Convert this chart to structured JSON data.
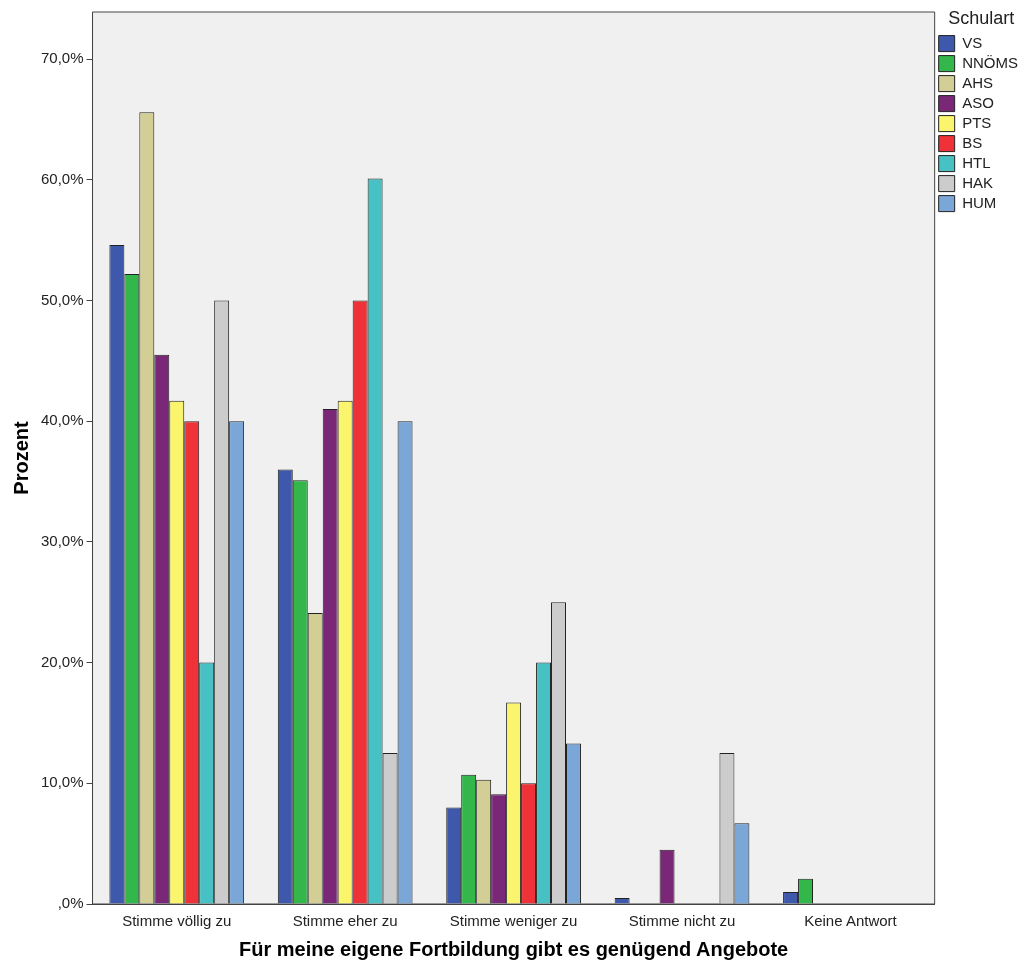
{
  "chart_data": {
    "type": "bar",
    "xlabel": "Für meine eigene Fortbildung gibt es genügend Angebote",
    "ylabel": "Prozent",
    "legend_title": "Schulart",
    "legend": "right",
    "grid": false,
    "categories": [
      "Stimme völlig zu",
      "Stimme eher zu",
      "Stimme weniger zu",
      "Stimme nicht zu",
      "Keine Antwort"
    ],
    "ylim": [
      0,
      73.9
    ],
    "yticks": [
      {
        "value": 0,
        "label": ",0%"
      },
      {
        "value": 10,
        "label": "10,0%"
      },
      {
        "value": 20,
        "label": "20,0%"
      },
      {
        "value": 30,
        "label": "30,0%"
      },
      {
        "value": 40,
        "label": "40,0%"
      },
      {
        "value": 50,
        "label": "50,0%"
      },
      {
        "value": 60,
        "label": "60,0%"
      },
      {
        "value": 70,
        "label": "70,0%"
      }
    ],
    "series": [
      {
        "name": "VS",
        "color": "#3e58ac",
        "values": [
          54.6,
          36.0,
          8.0,
          0.5,
          1.0
        ]
      },
      {
        "name": "NNÖMS",
        "color": "#33b74b",
        "values": [
          52.2,
          35.1,
          10.7,
          0,
          2.1
        ]
      },
      {
        "name": "AHS",
        "color": "#d2ce96",
        "values": [
          65.6,
          24.1,
          10.3,
          0,
          0
        ]
      },
      {
        "name": "ASO",
        "color": "#7b2778",
        "values": [
          45.5,
          41.0,
          9.1,
          4.5,
          0
        ]
      },
      {
        "name": "PTS",
        "color": "#fbf46d",
        "values": [
          41.7,
          41.7,
          16.7,
          0,
          0
        ]
      },
      {
        "name": "BS",
        "color": "#ee3238",
        "values": [
          40.0,
          50.0,
          10.0,
          0,
          0
        ]
      },
      {
        "name": "HTL",
        "color": "#48c1c4",
        "values": [
          20.0,
          60.1,
          20.0,
          0,
          0
        ]
      },
      {
        "name": "HAK",
        "color": "#cccccc",
        "values": [
          50.0,
          12.5,
          25.0,
          12.5,
          0
        ]
      },
      {
        "name": "HUM",
        "color": "#7aa7d8",
        "values": [
          40.0,
          40.0,
          13.3,
          6.7,
          0
        ]
      }
    ]
  }
}
